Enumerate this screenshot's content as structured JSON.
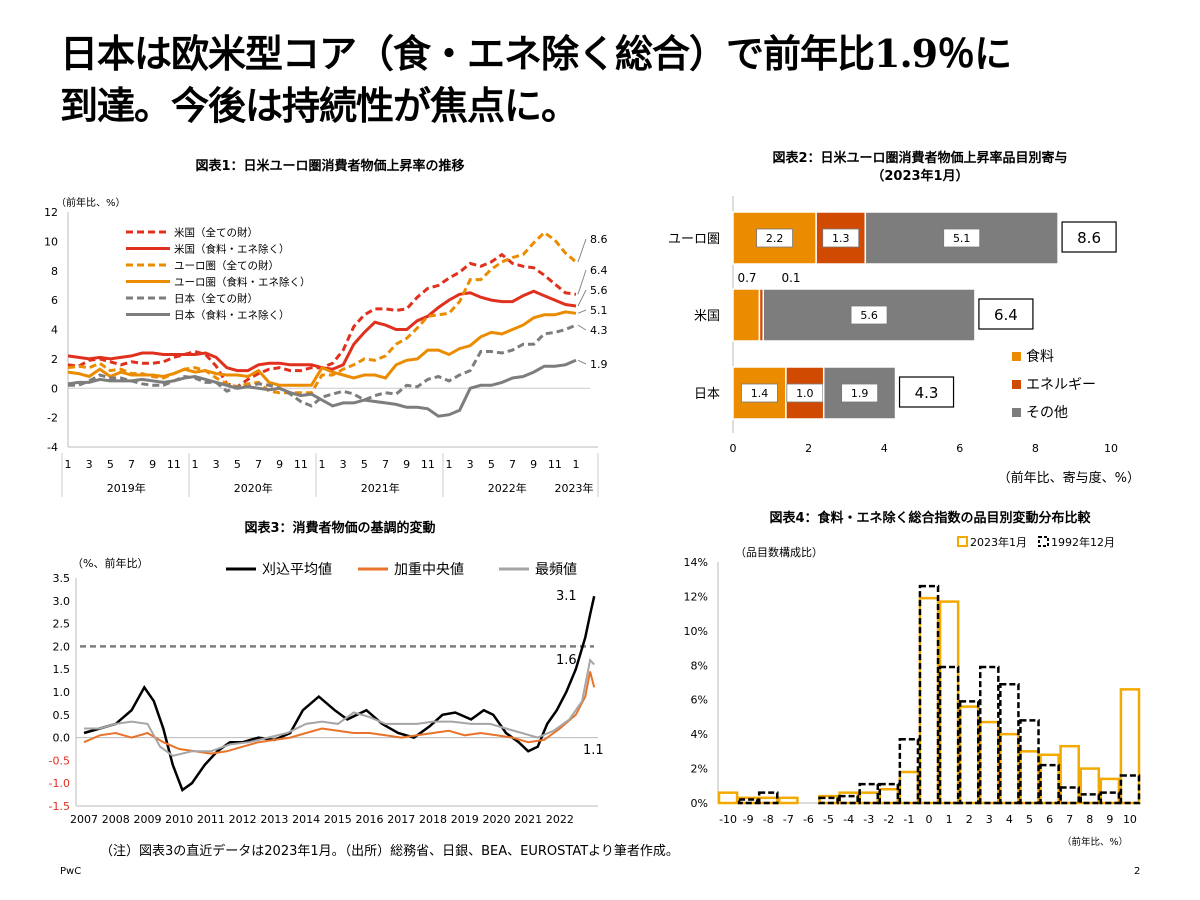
{
  "slide": {
    "title_line1": "日本は欧米型コア（食・エネ除く総合）で前年比1.9％に",
    "title_line2": "到達。今後は持続性が焦点に。",
    "footnote": "（注）図表3の直近データは2023年1月。（出所）総務省、日銀、BEA、EUROSTATより筆者作成。",
    "logo": "PwC",
    "page_number": "2"
  },
  "chart_data": [
    {
      "id": "chart1",
      "type": "line",
      "title": "図表1：日米ユーロ圏消費者物価上昇率の推移",
      "unit_label": "（前年比、%）",
      "ylim": [
        -4,
        12
      ],
      "yticks": [
        -4,
        -2,
        0,
        2,
        4,
        6,
        8,
        10,
        12
      ],
      "month_ticks": [
        "1",
        "3",
        "5",
        "7",
        "9",
        "11",
        "1",
        "3",
        "5",
        "7",
        "9",
        "11",
        "1",
        "3",
        "5",
        "7",
        "9",
        "11",
        "1",
        "3",
        "5",
        "7",
        "9",
        "11",
        "1"
      ],
      "year_labels": [
        "2019年",
        "2020年",
        "2021年",
        "2022年",
        "2023年"
      ],
      "end_labels": [
        "8.6",
        "6.4",
        "5.6",
        "5.1",
        "4.3",
        "1.9"
      ],
      "series": [
        {
          "name": "米国（全ての財）",
          "color": "#e0301e",
          "dash": true,
          "values": [
            1.6,
            1.5,
            1.9,
            2.0,
            1.8,
            1.6,
            1.8,
            1.7,
            1.7,
            1.8,
            2.1,
            2.3,
            2.5,
            2.3,
            1.5,
            0.3,
            0.1,
            0.6,
            1.0,
            1.3,
            1.4,
            1.2,
            1.2,
            1.4,
            1.4,
            1.7,
            2.6,
            4.2,
            5.0,
            5.4,
            5.4,
            5.3,
            5.4,
            6.2,
            6.8,
            7.0,
            7.5,
            7.9,
            8.5,
            8.3,
            8.6,
            9.1,
            8.5,
            8.3,
            8.2,
            7.7,
            7.1,
            6.5,
            6.4
          ]
        },
        {
          "name": "米国（食料・エネ除く）",
          "color": "#e0301e",
          "dash": false,
          "values": [
            2.2,
            2.1,
            2.0,
            2.1,
            2.0,
            2.1,
            2.2,
            2.4,
            2.4,
            2.3,
            2.3,
            2.3,
            2.3,
            2.4,
            2.1,
            1.4,
            1.2,
            1.2,
            1.6,
            1.7,
            1.7,
            1.6,
            1.6,
            1.6,
            1.4,
            1.3,
            1.6,
            3.0,
            3.8,
            4.5,
            4.3,
            4.0,
            4.0,
            4.6,
            4.9,
            5.5,
            6.0,
            6.4,
            6.5,
            6.2,
            6.0,
            5.9,
            5.9,
            6.3,
            6.6,
            6.3,
            6.0,
            5.7,
            5.6
          ]
        },
        {
          "name": "ユーロ圏（全ての財）",
          "color": "#eb8c00",
          "dash": true,
          "values": [
            1.4,
            1.5,
            1.4,
            1.7,
            1.2,
            1.3,
            1.0,
            1.0,
            0.8,
            0.7,
            1.0,
            1.3,
            1.4,
            1.2,
            0.7,
            0.3,
            0.1,
            0.3,
            0.4,
            -0.2,
            -0.3,
            -0.3,
            -0.3,
            -0.3,
            0.9,
            0.9,
            1.3,
            1.6,
            2.0,
            1.9,
            2.2,
            3.0,
            3.4,
            4.1,
            4.9,
            5.0,
            5.1,
            5.9,
            7.4,
            7.4,
            8.1,
            8.6,
            8.9,
            9.1,
            9.9,
            10.6,
            10.1,
            9.2,
            8.6
          ]
        },
        {
          "name": "ユーロ圏（食料・エネ除く）",
          "color": "#eb8c00",
          "dash": false,
          "values": [
            1.1,
            1.0,
            0.8,
            1.3,
            0.8,
            1.1,
            0.9,
            0.9,
            0.9,
            0.8,
            1.0,
            1.3,
            1.1,
            1.2,
            1.0,
            0.9,
            0.9,
            0.8,
            1.2,
            0.4,
            0.2,
            0.2,
            0.2,
            0.2,
            1.4,
            1.1,
            0.9,
            0.7,
            0.9,
            0.9,
            0.7,
            1.6,
            1.9,
            2.0,
            2.6,
            2.6,
            2.3,
            2.7,
            2.9,
            3.5,
            3.8,
            3.7,
            4.0,
            4.3,
            4.8,
            5.0,
            5.0,
            5.2,
            5.1
          ]
        },
        {
          "name": "日本（全ての財）",
          "color": "#7d7d7d",
          "dash": true,
          "values": [
            0.2,
            0.2,
            0.5,
            0.9,
            0.7,
            0.7,
            0.5,
            0.3,
            0.2,
            0.2,
            0.5,
            0.8,
            0.7,
            0.4,
            0.4,
            -0.2,
            0.1,
            0.1,
            0.3,
            0.2,
            0.0,
            -0.4,
            -0.9,
            -1.2,
            -0.6,
            -0.4,
            -0.2,
            -0.4,
            -0.8,
            -0.5,
            -0.3,
            -0.4,
            0.2,
            0.1,
            0.6,
            0.8,
            0.5,
            0.9,
            1.2,
            2.5,
            2.5,
            2.4,
            2.6,
            3.0,
            3.0,
            3.7,
            3.8,
            4.0,
            4.3
          ]
        },
        {
          "name": "日本（食料・エネ除く）",
          "color": "#7d7d7d",
          "dash": false,
          "values": [
            0.3,
            0.4,
            0.4,
            0.6,
            0.5,
            0.5,
            0.5,
            0.6,
            0.5,
            0.4,
            0.5,
            0.7,
            0.8,
            0.6,
            0.4,
            0.2,
            0.0,
            0.1,
            0.0,
            -0.1,
            0.0,
            -0.3,
            -0.5,
            -0.4,
            -0.8,
            -1.2,
            -1.0,
            -1.0,
            -0.8,
            -0.9,
            -1.0,
            -1.1,
            -1.3,
            -1.3,
            -1.4,
            -1.9,
            -1.8,
            -1.5,
            0.0,
            0.2,
            0.2,
            0.4,
            0.7,
            0.8,
            1.1,
            1.5,
            1.5,
            1.6,
            1.9
          ]
        }
      ]
    },
    {
      "id": "chart2",
      "type": "bar",
      "title": "図表2：日米ユーロ圏消費者物価上昇率品目別寄与",
      "subtitle": "（2023年1月）",
      "unit_label": "（前年比、寄与度、%）",
      "xlim": [
        0,
        10
      ],
      "xticks": [
        0,
        2,
        4,
        6,
        8,
        10
      ],
      "categories": [
        "ユーロ圏",
        "米国",
        "日本"
      ],
      "series": [
        {
          "name": "食料",
          "color": "#eb8c00",
          "values": [
            2.2,
            0.7,
            1.4
          ],
          "labels": [
            "2.2",
            "0.7",
            "1.4"
          ]
        },
        {
          "name": "エネルギー",
          "color": "#d04a02",
          "values": [
            1.3,
            0.1,
            1.0
          ],
          "labels": [
            "1.3",
            "0.1",
            "1.0"
          ]
        },
        {
          "name": "その他",
          "color": "#7d7d7d",
          "values": [
            5.1,
            5.6,
            1.9
          ],
          "labels": [
            "5.1",
            "5.6",
            "1.9"
          ]
        }
      ],
      "totals": [
        "8.6",
        "6.4",
        "4.3"
      ]
    },
    {
      "id": "chart3",
      "type": "line",
      "title": "図表3：消費者物価の基調的変動",
      "unit_label": "（%、前年比）",
      "ylim": [
        -1.5,
        3.5
      ],
      "yticks": [
        "3.5",
        "3.0",
        "2.5",
        "2.0",
        "1.5",
        "1.0",
        "0.5",
        "0.0",
        "-0.5",
        "-1.0",
        "-1.5"
      ],
      "xticks": [
        "2007",
        "2008",
        "2009",
        "2010",
        "2011",
        "2012",
        "2013",
        "2014",
        "2015",
        "2016",
        "2017",
        "2018",
        "2019",
        "2020",
        "2021",
        "2022"
      ],
      "reference_line": 2.0,
      "annotations": [
        "3.1",
        "1.6",
        "1.1"
      ],
      "series": [
        {
          "name": "刈込平均値",
          "color": "#000000",
          "points": [
            [
              2007.0,
              0.1
            ],
            [
              2007.5,
              0.2
            ],
            [
              2008.0,
              0.3
            ],
            [
              2008.5,
              0.6
            ],
            [
              2008.9,
              1.1
            ],
            [
              2009.2,
              0.8
            ],
            [
              2009.5,
              0.2
            ],
            [
              2009.8,
              -0.6
            ],
            [
              2010.1,
              -1.15
            ],
            [
              2010.4,
              -1.0
            ],
            [
              2010.8,
              -0.6
            ],
            [
              2011.2,
              -0.3
            ],
            [
              2011.6,
              -0.1
            ],
            [
              2012.0,
              -0.1
            ],
            [
              2012.5,
              0.0
            ],
            [
              2013.0,
              -0.05
            ],
            [
              2013.5,
              0.1
            ],
            [
              2013.9,
              0.6
            ],
            [
              2014.4,
              0.9
            ],
            [
              2014.9,
              0.6
            ],
            [
              2015.3,
              0.4
            ],
            [
              2015.9,
              0.6
            ],
            [
              2016.4,
              0.3
            ],
            [
              2016.9,
              0.1
            ],
            [
              2017.4,
              0.0
            ],
            [
              2017.9,
              0.25
            ],
            [
              2018.3,
              0.5
            ],
            [
              2018.7,
              0.55
            ],
            [
              2019.2,
              0.4
            ],
            [
              2019.6,
              0.6
            ],
            [
              2019.9,
              0.5
            ],
            [
              2020.3,
              0.1
            ],
            [
              2020.7,
              -0.1
            ],
            [
              2021.0,
              -0.3
            ],
            [
              2021.3,
              -0.2
            ],
            [
              2021.6,
              0.3
            ],
            [
              2021.9,
              0.6
            ],
            [
              2022.2,
              1.0
            ],
            [
              2022.5,
              1.5
            ],
            [
              2022.8,
              2.2
            ],
            [
              2022.95,
              2.7
            ],
            [
              2023.08,
              3.1
            ]
          ]
        },
        {
          "name": "加重中央値",
          "color": "#e8742b",
          "points": [
            [
              2007.0,
              -0.1
            ],
            [
              2007.5,
              0.05
            ],
            [
              2008.0,
              0.1
            ],
            [
              2008.5,
              0.0
            ],
            [
              2009.0,
              0.1
            ],
            [
              2009.5,
              -0.1
            ],
            [
              2010.0,
              -0.25
            ],
            [
              2010.5,
              -0.3
            ],
            [
              2011.0,
              -0.35
            ],
            [
              2011.5,
              -0.3
            ],
            [
              2012.0,
              -0.2
            ],
            [
              2012.5,
              -0.1
            ],
            [
              2013.0,
              -0.05
            ],
            [
              2013.5,
              0.0
            ],
            [
              2014.0,
              0.1
            ],
            [
              2014.5,
              0.2
            ],
            [
              2015.0,
              0.15
            ],
            [
              2015.5,
              0.1
            ],
            [
              2016.0,
              0.1
            ],
            [
              2016.5,
              0.05
            ],
            [
              2017.0,
              0.0
            ],
            [
              2017.5,
              0.05
            ],
            [
              2018.0,
              0.1
            ],
            [
              2018.5,
              0.15
            ],
            [
              2019.0,
              0.05
            ],
            [
              2019.5,
              0.1
            ],
            [
              2020.0,
              0.05
            ],
            [
              2020.5,
              0.0
            ],
            [
              2021.0,
              -0.1
            ],
            [
              2021.5,
              -0.05
            ],
            [
              2022.0,
              0.2
            ],
            [
              2022.5,
              0.5
            ],
            [
              2022.8,
              0.9
            ],
            [
              2022.95,
              1.45
            ],
            [
              2023.08,
              1.1
            ]
          ]
        },
        {
          "name": "最頻値",
          "color": "#a6a6a6",
          "points": [
            [
              2007.0,
              0.2
            ],
            [
              2007.5,
              0.2
            ],
            [
              2008.0,
              0.3
            ],
            [
              2008.5,
              0.35
            ],
            [
              2009.0,
              0.3
            ],
            [
              2009.4,
              -0.2
            ],
            [
              2009.8,
              -0.4
            ],
            [
              2010.4,
              -0.3
            ],
            [
              2011.0,
              -0.3
            ],
            [
              2011.6,
              -0.15
            ],
            [
              2012.2,
              -0.1
            ],
            [
              2012.8,
              0.0
            ],
            [
              2013.4,
              0.1
            ],
            [
              2014.0,
              0.3
            ],
            [
              2014.5,
              0.35
            ],
            [
              2015.0,
              0.3
            ],
            [
              2015.5,
              0.55
            ],
            [
              2016.0,
              0.45
            ],
            [
              2016.5,
              0.3
            ],
            [
              2017.0,
              0.3
            ],
            [
              2017.5,
              0.3
            ],
            [
              2018.0,
              0.35
            ],
            [
              2018.6,
              0.35
            ],
            [
              2019.2,
              0.3
            ],
            [
              2019.8,
              0.3
            ],
            [
              2020.3,
              0.2
            ],
            [
              2020.8,
              0.1
            ],
            [
              2021.3,
              0.0
            ],
            [
              2021.8,
              0.15
            ],
            [
              2022.3,
              0.4
            ],
            [
              2022.7,
              0.8
            ],
            [
              2022.95,
              1.7
            ],
            [
              2023.08,
              1.6
            ]
          ]
        }
      ]
    },
    {
      "id": "chart4",
      "type": "bar",
      "title": "図表4：食料・エネ除く総合指数の品目別変動分布比較",
      "unit_label": "（品目数構成比）",
      "xlabel": "（前年比、%）",
      "ylim": [
        0,
        14
      ],
      "yticks": [
        "0%",
        "2%",
        "4%",
        "6%",
        "8%",
        "10%",
        "12%",
        "14%"
      ],
      "categories": [
        "-10",
        "-9",
        "-8",
        "-7",
        "-6",
        "-5",
        "-4",
        "-3",
        "-2",
        "-1",
        "0",
        "1",
        "2",
        "3",
        "4",
        "5",
        "6",
        "7",
        "8",
        "9",
        "10"
      ],
      "series": [
        {
          "name": "2023年1月",
          "color": "#f2a900",
          "values": [
            0.6,
            0.3,
            0.3,
            0.3,
            0.0,
            0.4,
            0.6,
            0.6,
            0.8,
            1.8,
            11.9,
            11.7,
            5.6,
            4.7,
            4.0,
            3.0,
            2.8,
            3.3,
            2.0,
            1.4,
            6.6
          ]
        },
        {
          "name": "1992年12月",
          "color": "#000000",
          "values": [
            0.0,
            0.2,
            0.6,
            0.0,
            0.0,
            0.3,
            0.4,
            1.1,
            1.1,
            3.7,
            12.6,
            7.9,
            5.9,
            7.9,
            6.9,
            4.8,
            2.2,
            0.9,
            0.5,
            0.6,
            1.6
          ]
        }
      ]
    }
  ]
}
